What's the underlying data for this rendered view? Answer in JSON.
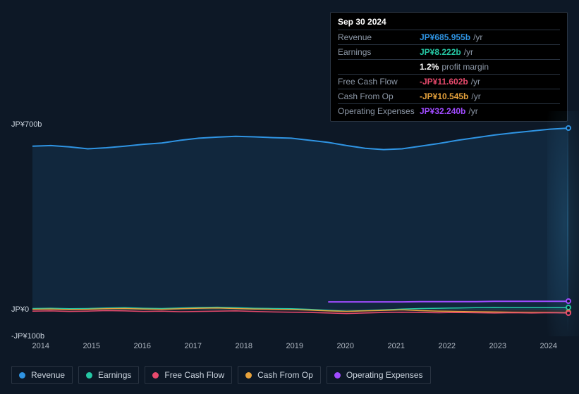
{
  "tooltip": {
    "date": "Sep 30 2024",
    "rows": [
      {
        "label": "Revenue",
        "value": "JP¥685.955b",
        "unit": "/yr",
        "color": "#2f94e3",
        "extra": ""
      },
      {
        "label": "Earnings",
        "value": "JP¥8.222b",
        "unit": "/yr",
        "color": "#25c7a4",
        "extra": ""
      },
      {
        "label": "",
        "value": "1.2%",
        "unit": "",
        "color": "#ffffff",
        "extra": "profit margin"
      },
      {
        "label": "Free Cash Flow",
        "value": "-JP¥11.602b",
        "unit": "/yr",
        "color": "#e84a6d",
        "extra": ""
      },
      {
        "label": "Cash From Op",
        "value": "-JP¥10.545b",
        "unit": "/yr",
        "color": "#e6a23c",
        "extra": ""
      },
      {
        "label": "Operating Expenses",
        "value": "JP¥32.240b",
        "unit": "/yr",
        "color": "#a04bff",
        "extra": ""
      }
    ]
  },
  "chart": {
    "type": "area",
    "background_color": "#0d1826",
    "grid_color": "#1a2433",
    "y_axis": {
      "ticks": [
        {
          "label": "JP¥700b",
          "value": 700
        },
        {
          "label": "JP¥0",
          "value": 0
        },
        {
          "label": "-JP¥100b",
          "value": -100
        }
      ],
      "min": -100,
      "max": 750
    },
    "x_axis": {
      "labels": [
        "2014",
        "2015",
        "2016",
        "2017",
        "2018",
        "2019",
        "2020",
        "2021",
        "2022",
        "2023",
        "2024"
      ]
    },
    "series": {
      "revenue": {
        "color": "#2f94e3",
        "fill": "rgba(47,148,227,0.12)",
        "line_width": 2,
        "values": [
          618,
          620,
          615,
          608,
          612,
          618,
          625,
          630,
          640,
          648,
          652,
          655,
          653,
          650,
          648,
          640,
          632,
          620,
          610,
          605,
          608,
          618,
          628,
          640,
          650,
          660,
          668,
          675,
          682,
          686
        ]
      },
      "earnings": {
        "color": "#25c7a4",
        "fill": "rgba(37,199,164,0.10)",
        "line_width": 1.5,
        "values": [
          5,
          6,
          4,
          5,
          7,
          8,
          6,
          5,
          7,
          9,
          10,
          8,
          6,
          5,
          4,
          2,
          -2,
          -5,
          -3,
          0,
          3,
          5,
          6,
          7,
          8,
          9,
          8,
          8,
          8,
          8
        ]
      },
      "fcf": {
        "color": "#e84a6d",
        "fill": "rgba(232,74,109,0.08)",
        "line_width": 1.5,
        "values": [
          -5,
          -4,
          -6,
          -5,
          -3,
          -4,
          -6,
          -5,
          -7,
          -6,
          -5,
          -4,
          -6,
          -8,
          -9,
          -10,
          -12,
          -14,
          -12,
          -10,
          -9,
          -10,
          -11,
          -10,
          -11,
          -12,
          -11,
          -12,
          -11,
          -12
        ]
      },
      "cashop": {
        "color": "#e6a23c",
        "fill": "rgba(230,162,60,0.08)",
        "line_width": 1.5,
        "values": [
          2,
          3,
          1,
          2,
          4,
          5,
          3,
          2,
          4,
          6,
          7,
          5,
          3,
          2,
          1,
          -1,
          -4,
          -6,
          -4,
          -2,
          0,
          -3,
          -5,
          -6,
          -7,
          -8,
          -9,
          -10,
          -10,
          -11
        ]
      },
      "opex": {
        "color": "#a04bff",
        "fill": "none",
        "line_width": 2,
        "start_index": 16,
        "values": [
          30,
          30,
          30,
          30,
          30,
          31,
          31,
          31,
          31,
          32,
          32,
          32,
          32,
          32
        ]
      }
    },
    "markers": [
      {
        "series": "revenue",
        "color": "#2f94e3"
      },
      {
        "series": "earnings",
        "color": "#25c7a4"
      },
      {
        "series": "opex",
        "color": "#a04bff"
      },
      {
        "series": "cashop",
        "color": "#e6a23c"
      },
      {
        "series": "fcf",
        "color": "#e84a6d"
      }
    ]
  },
  "legend": [
    {
      "label": "Revenue",
      "color": "#2f94e3"
    },
    {
      "label": "Earnings",
      "color": "#25c7a4"
    },
    {
      "label": "Free Cash Flow",
      "color": "#e84a6d"
    },
    {
      "label": "Cash From Op",
      "color": "#e6a23c"
    },
    {
      "label": "Operating Expenses",
      "color": "#a04bff"
    }
  ]
}
